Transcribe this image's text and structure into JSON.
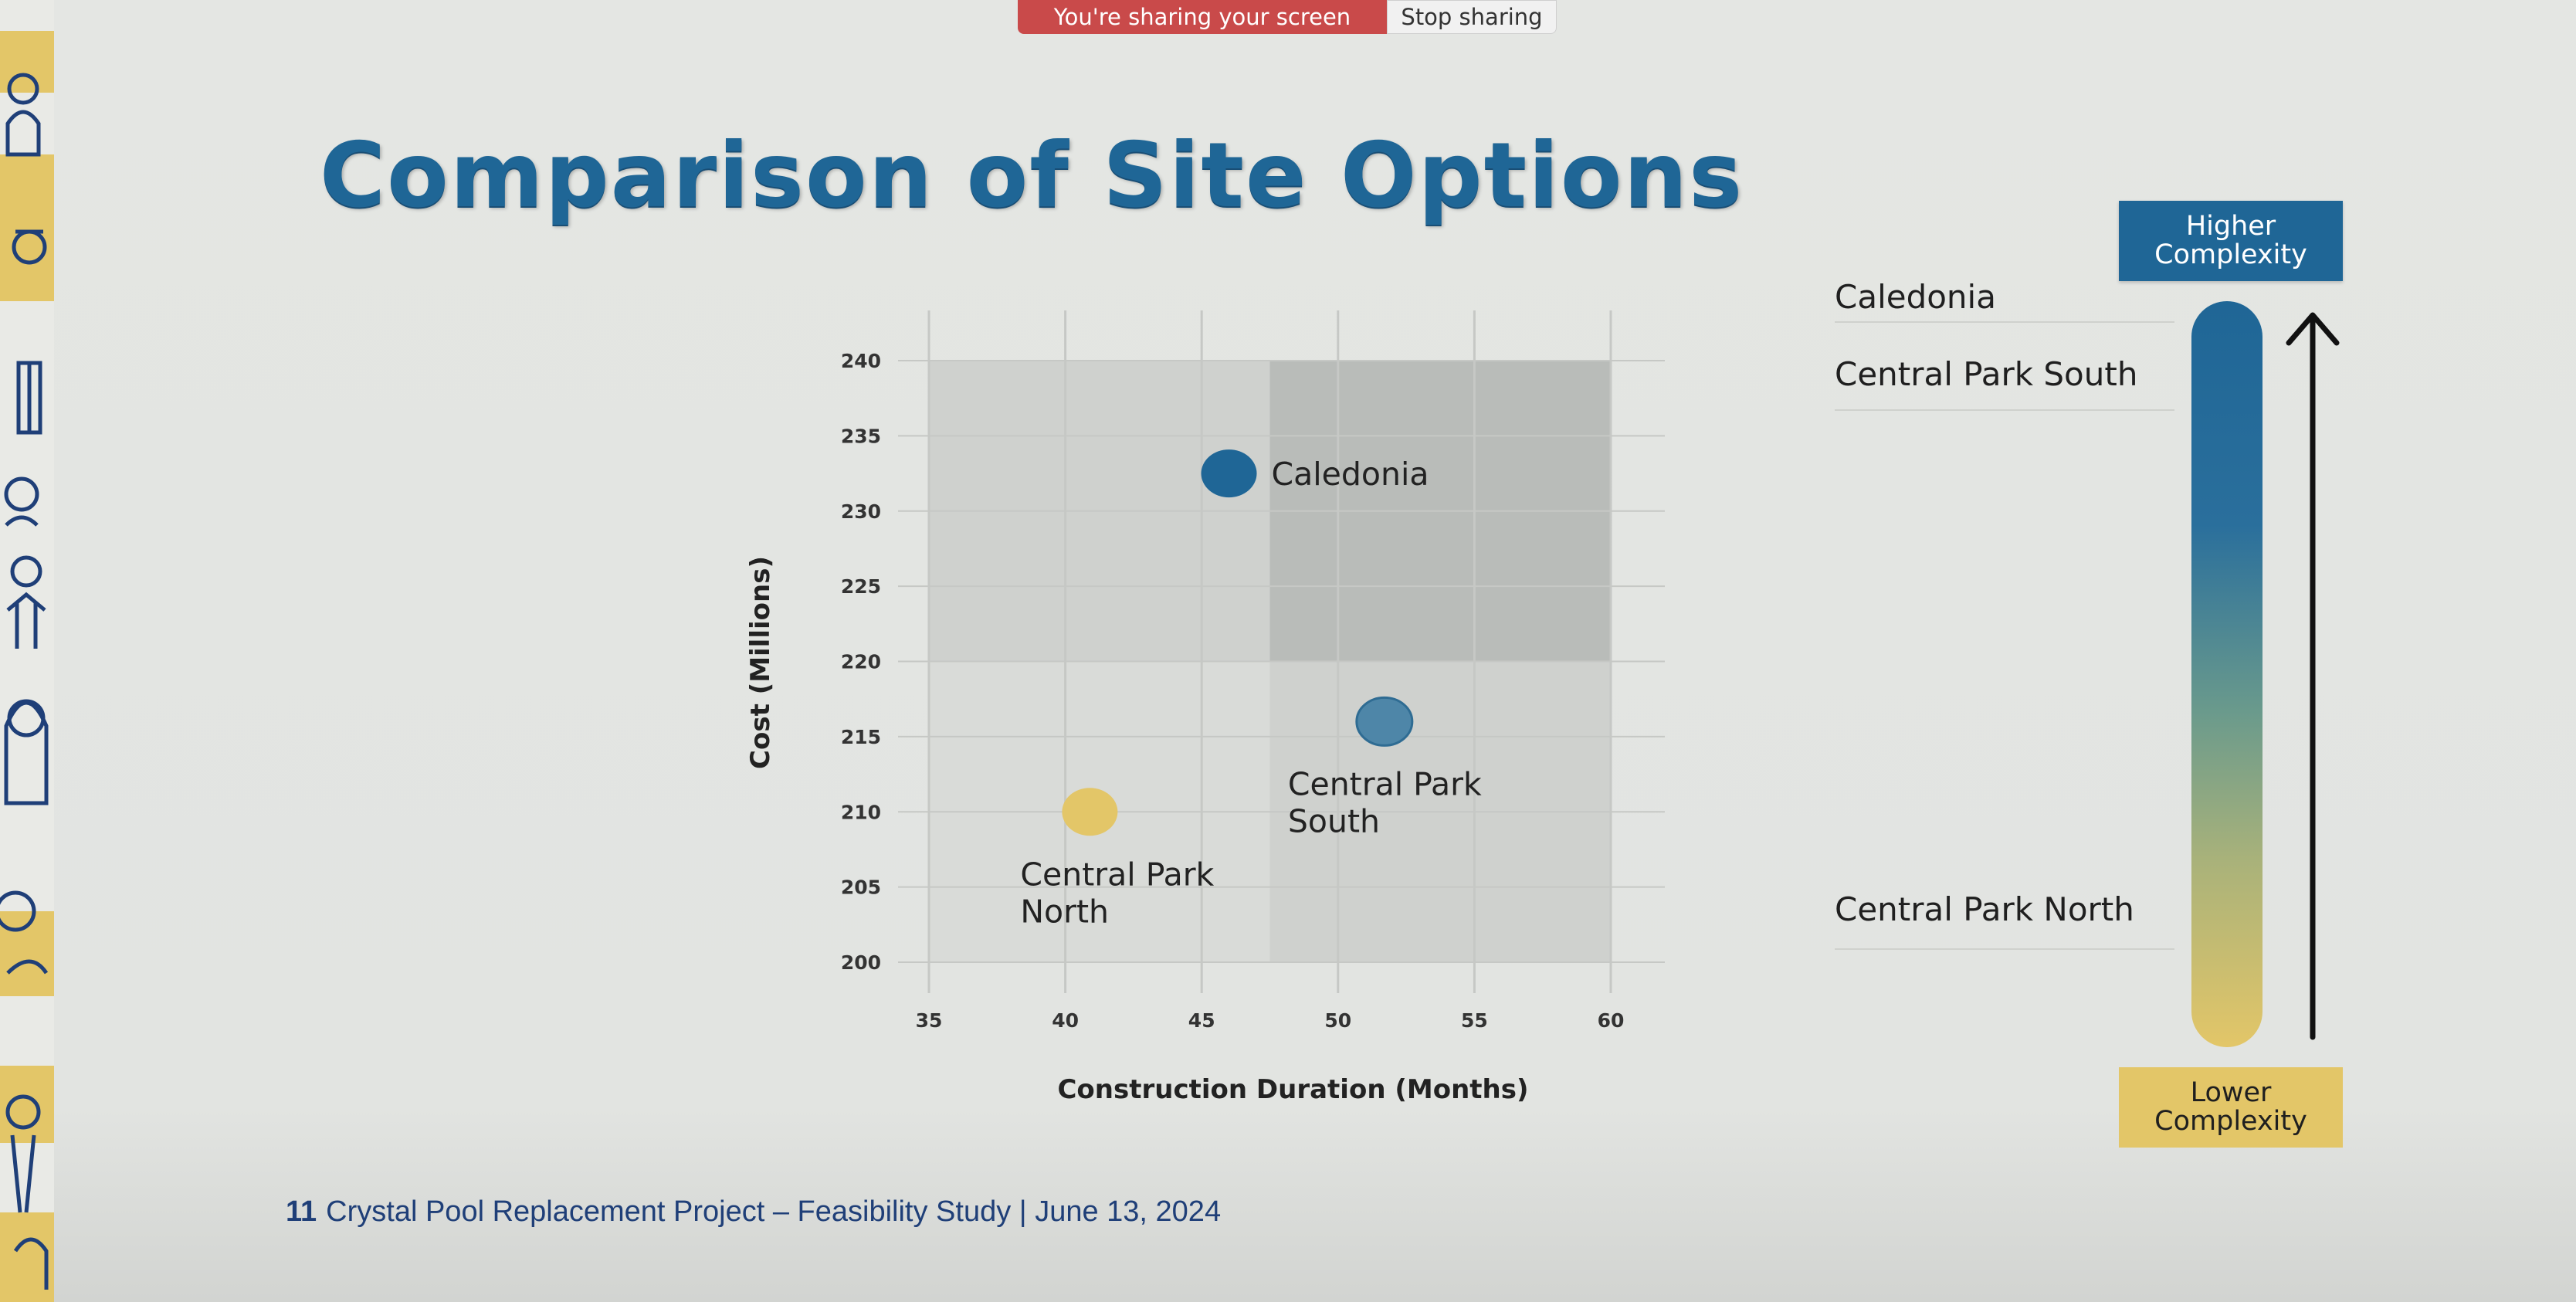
{
  "screen_share": {
    "status": "You're sharing your screen",
    "stop_label": "Stop sharing"
  },
  "slide": {
    "title": "Comparison of Site Options",
    "page_number": "11",
    "footer_text": "Crystal Pool Replacement Project – Feasibility Study | June 13, 2024"
  },
  "complexity_scale": {
    "higher_label": "Higher Complexity",
    "lower_label": "Lower Complexity",
    "ranked_sites": [
      "Caledonia",
      "Central Park South",
      "Central Park North"
    ]
  },
  "colors": {
    "brand_blue": "#1f6696",
    "brand_yellow": "#e3c668",
    "point_mid_blue": "#4e86a8"
  },
  "chart_data": {
    "type": "scatter",
    "xlabel": "Construction Duration (Months)",
    "ylabel": "Cost (Millions)",
    "xlim": [
      35,
      60
    ],
    "ylim": [
      200,
      240
    ],
    "xticks": [
      35,
      40,
      45,
      50,
      55,
      60
    ],
    "yticks": [
      200,
      205,
      210,
      215,
      220,
      225,
      230,
      235,
      240
    ],
    "grid": true,
    "shaded_regions": [
      {
        "x": [
          35,
          47.5
        ],
        "y": [
          220,
          240
        ],
        "shade": "light"
      },
      {
        "x": [
          47.5,
          60
        ],
        "y": [
          220,
          240
        ],
        "shade": "dark"
      },
      {
        "x": [
          35,
          47.5
        ],
        "y": [
          200,
          220
        ],
        "shade": "lighter"
      },
      {
        "x": [
          47.5,
          60
        ],
        "y": [
          200,
          220
        ],
        "shade": "light"
      }
    ],
    "points": [
      {
        "label": "Caledonia",
        "x": 46,
        "y": 232.5,
        "color": "#1f6696"
      },
      {
        "label": "Central Park South",
        "x": 51.7,
        "y": 216,
        "color": "#4e86a8"
      },
      {
        "label": "Central Park North",
        "x": 40.9,
        "y": 210,
        "color": "#e3c668"
      }
    ]
  }
}
